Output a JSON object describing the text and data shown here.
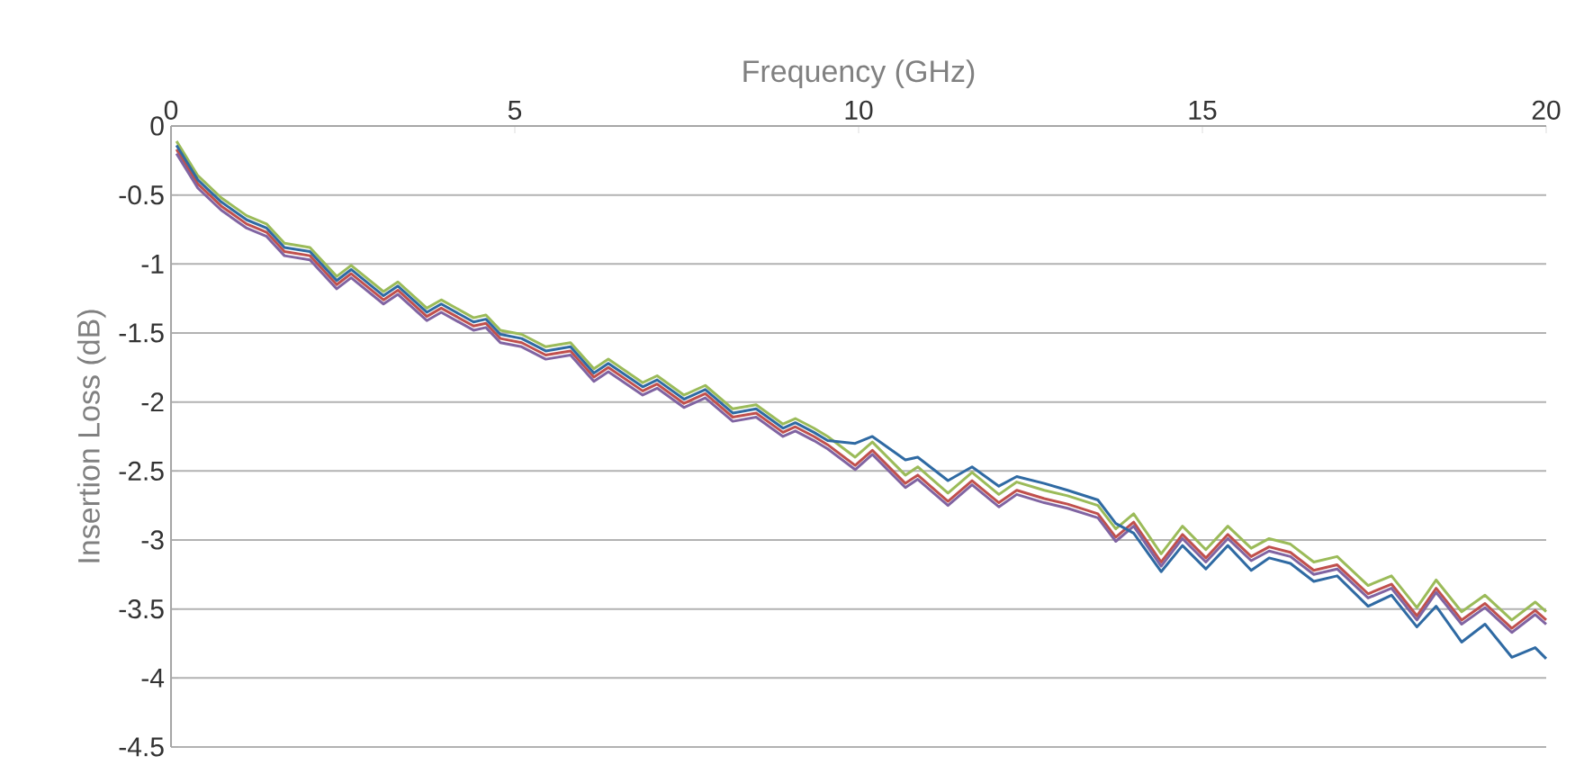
{
  "chart_data": {
    "type": "line",
    "xlabel": "Frequency (GHz)",
    "ylabel": "Insertion Loss (dB)",
    "x": [
      0.08,
      0.39,
      0.73,
      1.1,
      1.39,
      1.65,
      2.02,
      2.15,
      2.41,
      2.62,
      3.09,
      3.3,
      3.72,
      3.93,
      4.4,
      4.58,
      4.79,
      5.1,
      5.45,
      5.81,
      6.15,
      6.36,
      6.86,
      7.07,
      7.46,
      7.77,
      8.17,
      8.51,
      8.9,
      9.08,
      9.35,
      9.55,
      9.95,
      10.2,
      10.68,
      10.86,
      11.3,
      11.65,
      12.04,
      12.3,
      12.7,
      13.04,
      13.48,
      13.74,
      14.0,
      14.4,
      14.71,
      15.05,
      15.37,
      15.71,
      15.97,
      16.28,
      16.62,
      16.96,
      17.41,
      17.75,
      18.12,
      18.4,
      18.77,
      19.11,
      19.5,
      19.84,
      20.0
    ],
    "series": [
      {
        "color": "#9bbb59",
        "values": [
          -0.11,
          -0.36,
          -0.52,
          -0.65,
          -0.71,
          -0.85,
          -0.88,
          -0.95,
          -1.09,
          -1.01,
          -1.2,
          -1.13,
          -1.32,
          -1.26,
          -1.39,
          -1.37,
          -1.48,
          -1.51,
          -1.6,
          -1.57,
          -1.76,
          -1.69,
          -1.86,
          -1.81,
          -1.95,
          -1.88,
          -2.05,
          -2.02,
          -2.16,
          -2.12,
          -2.19,
          -2.25,
          -2.4,
          -2.29,
          -2.53,
          -2.47,
          -2.66,
          -2.51,
          -2.67,
          -2.58,
          -2.64,
          -2.68,
          -2.75,
          -2.92,
          -2.81,
          -3.1,
          -2.9,
          -3.07,
          -2.9,
          -3.06,
          -2.99,
          -3.03,
          -3.16,
          -3.12,
          -3.33,
          -3.26,
          -3.49,
          -3.29,
          -3.52,
          -3.4,
          -3.58,
          -3.45,
          -3.52
        ]
      },
      {
        "color": "#c0504d",
        "values": [
          -0.17,
          -0.42,
          -0.58,
          -0.71,
          -0.77,
          -0.91,
          -0.94,
          -1.01,
          -1.15,
          -1.07,
          -1.26,
          -1.19,
          -1.38,
          -1.32,
          -1.45,
          -1.43,
          -1.54,
          -1.57,
          -1.66,
          -1.63,
          -1.82,
          -1.75,
          -1.92,
          -1.87,
          -2.01,
          -1.94,
          -2.11,
          -2.08,
          -2.22,
          -2.18,
          -2.25,
          -2.31,
          -2.46,
          -2.35,
          -2.59,
          -2.53,
          -2.72,
          -2.57,
          -2.73,
          -2.64,
          -2.7,
          -2.74,
          -2.81,
          -2.98,
          -2.87,
          -3.16,
          -2.96,
          -3.13,
          -2.96,
          -3.12,
          -3.05,
          -3.09,
          -3.22,
          -3.18,
          -3.39,
          -3.32,
          -3.55,
          -3.35,
          -3.58,
          -3.46,
          -3.64,
          -3.51,
          -3.58
        ]
      },
      {
        "color": "#8064a2",
        "values": [
          -0.2,
          -0.45,
          -0.61,
          -0.74,
          -0.8,
          -0.94,
          -0.97,
          -1.04,
          -1.18,
          -1.1,
          -1.29,
          -1.22,
          -1.41,
          -1.35,
          -1.48,
          -1.46,
          -1.57,
          -1.6,
          -1.69,
          -1.66,
          -1.85,
          -1.78,
          -1.95,
          -1.9,
          -2.04,
          -1.97,
          -2.14,
          -2.11,
          -2.25,
          -2.21,
          -2.28,
          -2.34,
          -2.49,
          -2.38,
          -2.62,
          -2.56,
          -2.75,
          -2.6,
          -2.76,
          -2.67,
          -2.73,
          -2.77,
          -2.84,
          -3.01,
          -2.9,
          -3.19,
          -2.99,
          -3.16,
          -2.99,
          -3.15,
          -3.08,
          -3.12,
          -3.25,
          -3.21,
          -3.42,
          -3.35,
          -3.58,
          -3.38,
          -3.61,
          -3.49,
          -3.67,
          -3.54,
          -3.61
        ]
      },
      {
        "color": "#2f6aa3",
        "values": [
          -0.14,
          -0.39,
          -0.55,
          -0.68,
          -0.74,
          -0.88,
          -0.91,
          -0.98,
          -1.12,
          -1.04,
          -1.23,
          -1.16,
          -1.35,
          -1.29,
          -1.42,
          -1.4,
          -1.51,
          -1.54,
          -1.63,
          -1.6,
          -1.79,
          -1.72,
          -1.89,
          -1.84,
          -1.98,
          -1.91,
          -2.08,
          -2.05,
          -2.19,
          -2.15,
          -2.22,
          -2.28,
          -2.3,
          -2.25,
          -2.42,
          -2.4,
          -2.57,
          -2.47,
          -2.61,
          -2.54,
          -2.59,
          -2.64,
          -2.71,
          -2.88,
          -2.95,
          -3.23,
          -3.04,
          -3.21,
          -3.04,
          -3.22,
          -3.13,
          -3.17,
          -3.3,
          -3.26,
          -3.48,
          -3.4,
          -3.63,
          -3.48,
          -3.74,
          -3.61,
          -3.85,
          -3.78,
          -3.86
        ]
      }
    ],
    "xlim": [
      0,
      20
    ],
    "ylim": [
      -4.5,
      0
    ],
    "xticks": [
      0,
      5,
      10,
      15,
      20
    ],
    "yticks": [
      0,
      -0.5,
      -1,
      -1.5,
      -2,
      -2.5,
      -3,
      -3.5,
      -4,
      -4.5
    ],
    "grid": "y",
    "line_style": "solid"
  }
}
